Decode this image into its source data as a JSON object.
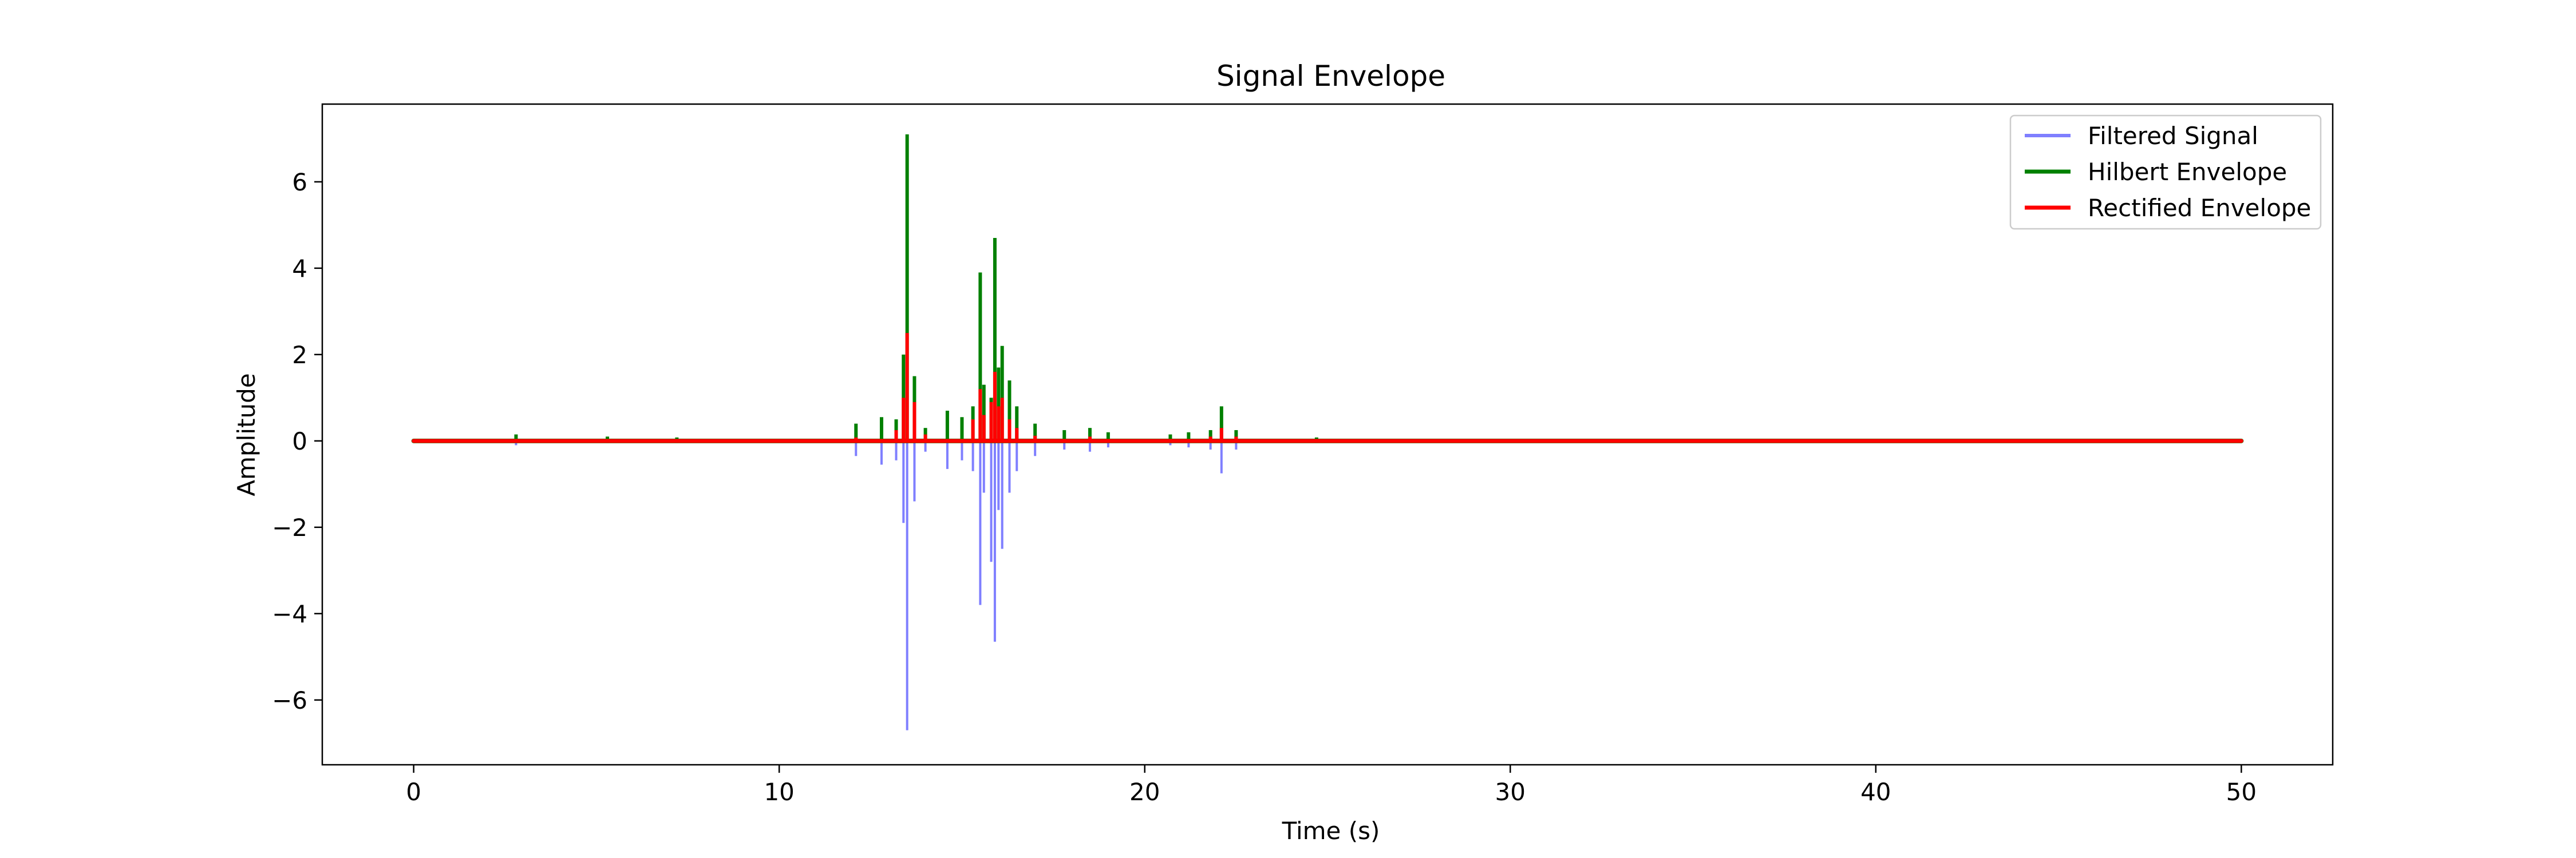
{
  "chart_data": {
    "type": "line",
    "title": "Signal Envelope",
    "xlabel": "Time (s)",
    "ylabel": "Amplitude",
    "xlim": [
      -2.5,
      52.5
    ],
    "ylim": [
      -7.5,
      7.8
    ],
    "xticks": [
      0,
      10,
      20,
      30,
      40,
      50
    ],
    "yticks": [
      -6,
      -4,
      -2,
      0,
      2,
      4,
      6
    ],
    "xtick_labels": [
      "0",
      "10",
      "20",
      "30",
      "40",
      "50"
    ],
    "ytick_labels": [
      "−6",
      "−4",
      "−2",
      "0",
      "2",
      "4",
      "6"
    ],
    "grid": false,
    "legend_position": "top-right",
    "series": [
      {
        "name": "Filtered Signal",
        "color": "#7f7fff",
        "style": "spikes",
        "x": [
          0,
          2.8,
          5.3,
          7.2,
          12.1,
          12.8,
          13.2,
          13.4,
          13.5,
          13.7,
          14.0,
          14.6,
          15.0,
          15.3,
          15.5,
          15.6,
          15.8,
          15.9,
          16.0,
          16.1,
          16.3,
          16.5,
          17.0,
          17.8,
          18.5,
          19.0,
          20.7,
          21.2,
          21.8,
          22.1,
          22.5,
          24.7,
          50
        ],
        "y": [
          0,
          -0.1,
          -0.05,
          -0.05,
          -0.35,
          -0.55,
          -0.45,
          -1.9,
          -6.7,
          -1.4,
          -0.25,
          -0.65,
          -0.45,
          -0.7,
          -3.8,
          -1.2,
          -2.8,
          -4.65,
          -1.6,
          -2.5,
          -1.2,
          -0.7,
          -0.35,
          -0.2,
          -0.25,
          -0.15,
          -0.1,
          -0.15,
          -0.2,
          -0.75,
          -0.2,
          -0.05,
          0
        ]
      },
      {
        "name": "Hilbert Envelope",
        "color": "#008000",
        "style": "spikes",
        "x": [
          0,
          2.8,
          5.3,
          7.2,
          12.1,
          12.8,
          13.2,
          13.4,
          13.5,
          13.7,
          14.0,
          14.6,
          15.0,
          15.3,
          15.5,
          15.6,
          15.8,
          15.9,
          16.0,
          16.1,
          16.3,
          16.5,
          17.0,
          17.8,
          18.5,
          19.0,
          20.7,
          21.2,
          21.8,
          22.1,
          22.5,
          24.7,
          50
        ],
        "y": [
          0,
          0.15,
          0.1,
          0.08,
          0.4,
          0.55,
          0.5,
          2.0,
          7.1,
          1.5,
          0.3,
          0.7,
          0.55,
          0.8,
          3.9,
          1.3,
          1.0,
          4.7,
          1.7,
          2.2,
          1.4,
          0.8,
          0.4,
          0.25,
          0.3,
          0.2,
          0.15,
          0.2,
          0.25,
          0.8,
          0.25,
          0.08,
          0
        ]
      },
      {
        "name": "Rectified Envelope",
        "color": "#ff0000",
        "style": "spikes",
        "x": [
          0,
          12.1,
          13.2,
          13.4,
          13.5,
          13.7,
          14.0,
          15.3,
          15.5,
          15.6,
          15.8,
          15.9,
          16.0,
          16.1,
          16.3,
          16.5,
          17.0,
          18.5,
          21.8,
          22.1,
          22.5,
          50
        ],
        "y": [
          0,
          0.08,
          0.25,
          1.0,
          2.5,
          0.9,
          0.15,
          0.5,
          1.2,
          0.6,
          0.9,
          1.6,
          0.8,
          1.0,
          0.5,
          0.3,
          0.12,
          0.1,
          0.1,
          0.3,
          0.1,
          0
        ]
      }
    ]
  }
}
